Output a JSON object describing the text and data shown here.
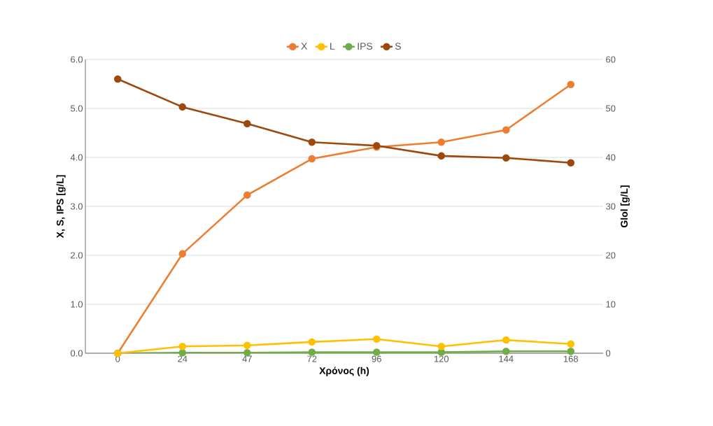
{
  "chart_data": {
    "type": "line",
    "categories": [
      "0",
      "24",
      "47",
      "72",
      "96",
      "120",
      "144",
      "168"
    ],
    "xlabel": "Χρόνος (h)",
    "ylabel": "X, S, IPS [g/L]",
    "y2label": "Glol [g/L]",
    "ylim": [
      0,
      6
    ],
    "yticks": [
      {
        "value": 0,
        "label": "0.0"
      },
      {
        "value": 1,
        "label": "1.0"
      },
      {
        "value": 2,
        "label": "2.0"
      },
      {
        "value": 3,
        "label": "3.0"
      },
      {
        "value": 4,
        "label": "4.0"
      },
      {
        "value": 5,
        "label": "5.0"
      },
      {
        "value": 6,
        "label": "6.0"
      }
    ],
    "y2lim": [
      0,
      60
    ],
    "y2ticks": [
      0,
      10,
      20,
      30,
      40,
      50,
      60
    ],
    "grid": "y",
    "legend": "top",
    "marker": "circle",
    "line_style": "solid",
    "series": [
      {
        "name": "X",
        "color": "#ed7d31",
        "values": [
          0,
          2.03,
          3.23,
          3.97,
          4.21,
          4.31,
          4.56,
          5.49
        ]
      },
      {
        "name": "L",
        "color": "#ffc000",
        "axis": "y2",
        "values": [
          0,
          1.4,
          1.6,
          2.3,
          2.9,
          1.4,
          2.7,
          1.9
        ]
      },
      {
        "name": "IPS",
        "color": "#70ad47",
        "values": [
          0,
          0.01,
          0.01,
          0.02,
          0.02,
          0.02,
          0.04,
          0.04
        ]
      },
      {
        "name": "S",
        "color": "#9e480e",
        "values": [
          5.6,
          5.03,
          4.69,
          4.31,
          4.24,
          4.03,
          3.99,
          3.89
        ]
      }
    ]
  }
}
